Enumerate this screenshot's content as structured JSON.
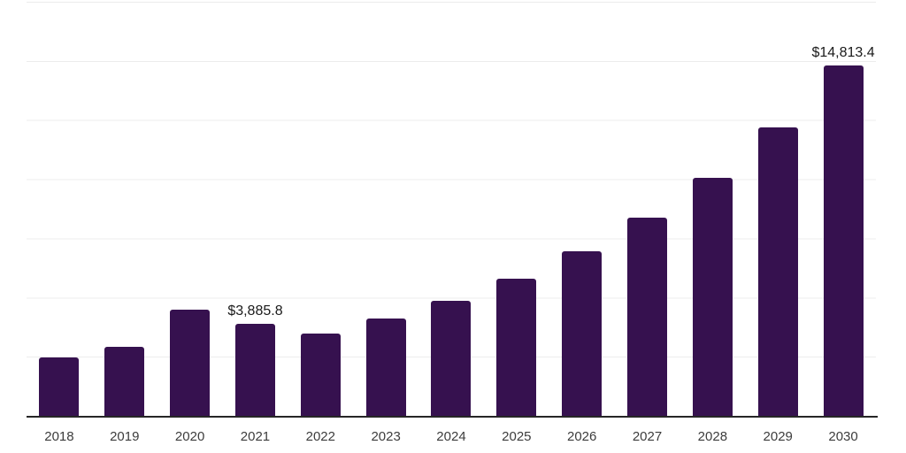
{
  "chart_data": {
    "type": "bar",
    "title": "",
    "xlabel": "",
    "ylabel": "",
    "categories": [
      "2018",
      "2019",
      "2020",
      "2021",
      "2022",
      "2023",
      "2024",
      "2025",
      "2026",
      "2027",
      "2028",
      "2029",
      "2030"
    ],
    "values": [
      2480,
      2900,
      4480,
      3885.8,
      3480,
      4130,
      4850,
      5800,
      6970,
      8360,
      10060,
      12180,
      14813.4
    ],
    "data_labels": [
      {
        "index": 3,
        "text": "$3,885.8"
      },
      {
        "index": 12,
        "text": "$14,813.4"
      }
    ],
    "value_unit": "USD",
    "ylim": [
      0,
      17500
    ],
    "gridline_step": 2500,
    "grid": "horizontal",
    "legend_position": "none"
  },
  "colors": {
    "bar": "#36114F",
    "axis_line": "#262626",
    "gridline": "#ececec",
    "tick_label": "#3c3c3c",
    "data_label": "#1a1a1a",
    "background": "#ffffff"
  }
}
